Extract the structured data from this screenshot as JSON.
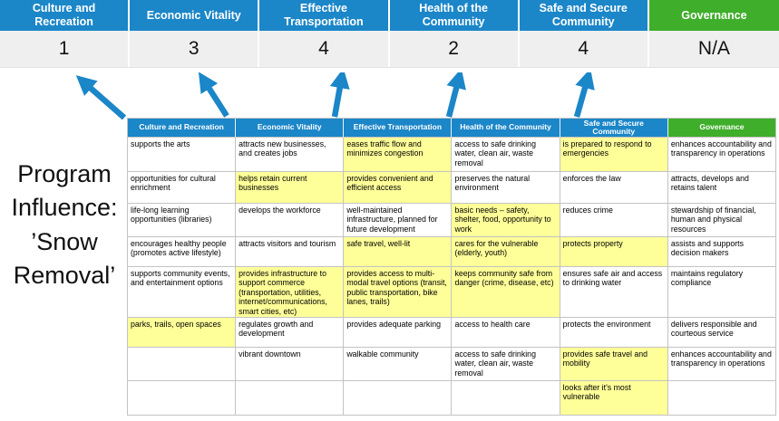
{
  "title": "Program Influence: ’Snow Removal’",
  "colors": {
    "header_blue": "#1b86c8",
    "header_green": "#3fae2a",
    "highlight_yellow": "#ffff99",
    "score_row_bg": "#efefef",
    "arrow_blue": "#1b86c8",
    "table_border": "#c3c3c3"
  },
  "summary": {
    "columns": [
      {
        "label": "Culture and Recreation",
        "score": "1",
        "color": "blue"
      },
      {
        "label": "Economic Vitality",
        "score": "3",
        "color": "blue"
      },
      {
        "label": "Effective Transportation",
        "score": "4",
        "color": "blue"
      },
      {
        "label": "Health of the Community",
        "score": "2",
        "color": "blue"
      },
      {
        "label": "Safe and Secure Community",
        "score": "4",
        "color": "blue"
      },
      {
        "label": "Governance",
        "score": "N/A",
        "color": "green"
      }
    ]
  },
  "matrix": {
    "headers": [
      "Culture and Recreation",
      "Economic Vitality",
      "Effective Transportation",
      "Health of the Community",
      "Safe and Secure Community",
      "Governance"
    ],
    "rows": [
      [
        {
          "text": "supports the arts",
          "hl": false
        },
        {
          "text": "attracts new businesses, and creates jobs",
          "hl": false
        },
        {
          "text": "eases traffic flow and minimizes congestion",
          "hl": true
        },
        {
          "text": "access to safe drinking water, clean air, waste removal",
          "hl": false
        },
        {
          "text": "is prepared to respond to emergencies",
          "hl": true
        },
        {
          "text": "enhances accountability and transparency in operations",
          "hl": false
        }
      ],
      [
        {
          "text": "opportunities for cultural enrichment",
          "hl": false
        },
        {
          "text": "helps retain current businesses",
          "hl": true
        },
        {
          "text": "provides convenient and efficient access",
          "hl": true
        },
        {
          "text": "preserves the natural environment",
          "hl": false
        },
        {
          "text": "enforces the law",
          "hl": false
        },
        {
          "text": "attracts, develops and retains talent",
          "hl": false
        }
      ],
      [
        {
          "text": "life-long learning opportunities (libraries)",
          "hl": false
        },
        {
          "text": "develops the workforce",
          "hl": false
        },
        {
          "text": "well-maintained infrastructure, planned for future development",
          "hl": false
        },
        {
          "text": "basic needs – safety, shelter, food, opportunity to work",
          "hl": true
        },
        {
          "text": "reduces crime",
          "hl": false
        },
        {
          "text": "stewardship of financial, human and physical resources",
          "hl": false
        }
      ],
      [
        {
          "text": "encourages healthy people (promotes active lifestyle)",
          "hl": false
        },
        {
          "text": "attracts visitors and tourism",
          "hl": false
        },
        {
          "text": "safe travel, well-lit",
          "hl": true
        },
        {
          "text": "cares for the vulnerable (elderly, youth)",
          "hl": true
        },
        {
          "text": "protects property",
          "hl": true
        },
        {
          "text": "assists and supports decision makers",
          "hl": false
        }
      ],
      [
        {
          "text": "supports community events, and entertainment options",
          "hl": false
        },
        {
          "text": "provides infrastructure to support commerce (transportation, utilities, internet/communications, smart cities, etc)",
          "hl": true
        },
        {
          "text": "provides access to multi-modal travel options (transit, public transportation, bike lanes, trails)",
          "hl": true
        },
        {
          "text": "keeps community safe from danger (crime, disease, etc)",
          "hl": true
        },
        {
          "text": "ensures safe air and access to drinking water",
          "hl": false
        },
        {
          "text": "maintains regulatory compliance",
          "hl": false
        }
      ],
      [
        {
          "text": "parks, trails, open spaces",
          "hl": true
        },
        {
          "text": "regulates growth and development",
          "hl": false
        },
        {
          "text": "provides adequate parking",
          "hl": false
        },
        {
          "text": "access to health care",
          "hl": false
        },
        {
          "text": "protects the environment",
          "hl": false
        },
        {
          "text": "delivers responsible and courteous service",
          "hl": false
        }
      ],
      [
        {
          "text": "",
          "hl": false
        },
        {
          "text": "vibrant downtown",
          "hl": false
        },
        {
          "text": "walkable community",
          "hl": false
        },
        {
          "text": "access to safe drinking water, clean air, waste removal",
          "hl": false
        },
        {
          "text": "provides safe travel and mobility",
          "hl": true
        },
        {
          "text": "enhances accountability and transparency in operations",
          "hl": false
        }
      ],
      [
        {
          "text": "",
          "hl": false
        },
        {
          "text": "",
          "hl": false
        },
        {
          "text": "",
          "hl": false
        },
        {
          "text": "",
          "hl": false
        },
        {
          "text": "looks after it's most vulnerable",
          "hl": true
        },
        {
          "text": "",
          "hl": false
        }
      ]
    ]
  }
}
